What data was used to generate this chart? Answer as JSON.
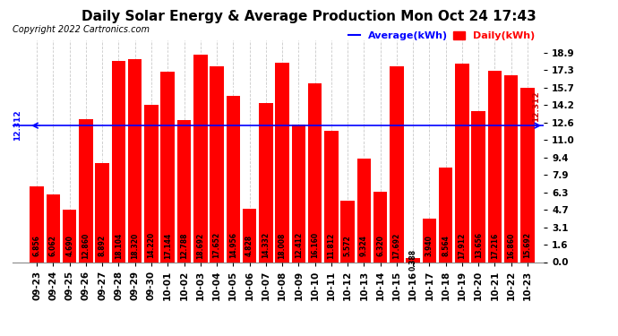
{
  "title": "Daily Solar Energy & Average Production Mon Oct 24 17:43",
  "copyright": "Copyright 2022 Cartronics.com",
  "average_value": 12.312,
  "average_label": "Average(kWh)",
  "daily_label": "Daily(kWh)",
  "categories": [
    "09-23",
    "09-24",
    "09-25",
    "09-26",
    "09-27",
    "09-28",
    "09-29",
    "09-30",
    "10-01",
    "10-02",
    "10-03",
    "10-04",
    "10-05",
    "10-06",
    "10-07",
    "10-08",
    "10-09",
    "10-10",
    "10-11",
    "10-12",
    "10-13",
    "10-14",
    "10-15",
    "10-16",
    "10-17",
    "10-18",
    "10-19",
    "10-20",
    "10-21",
    "10-22",
    "10-23"
  ],
  "values": [
    6.856,
    6.062,
    4.69,
    12.86,
    8.892,
    18.104,
    18.32,
    14.22,
    17.144,
    12.788,
    18.692,
    17.652,
    14.956,
    4.828,
    14.332,
    18.008,
    12.412,
    16.16,
    11.812,
    5.572,
    9.324,
    6.32,
    17.692,
    0.388,
    3.94,
    8.564,
    17.912,
    13.656,
    17.216,
    16.86,
    15.692
  ],
  "bar_color": "#ff0000",
  "avg_line_color": "#0000ff",
  "background_color": "#ffffff",
  "grid_color": "#bbbbbb",
  "value_text_color": "#000000",
  "yticks": [
    0.0,
    1.6,
    3.1,
    4.7,
    6.3,
    7.9,
    9.4,
    11.0,
    12.6,
    14.2,
    15.7,
    17.3,
    18.9
  ],
  "ylim": [
    0,
    20.0
  ],
  "title_fontsize": 11,
  "copyright_fontsize": 7,
  "tick_fontsize": 7.5,
  "bar_label_fontsize": 5.5,
  "legend_fontsize": 8
}
